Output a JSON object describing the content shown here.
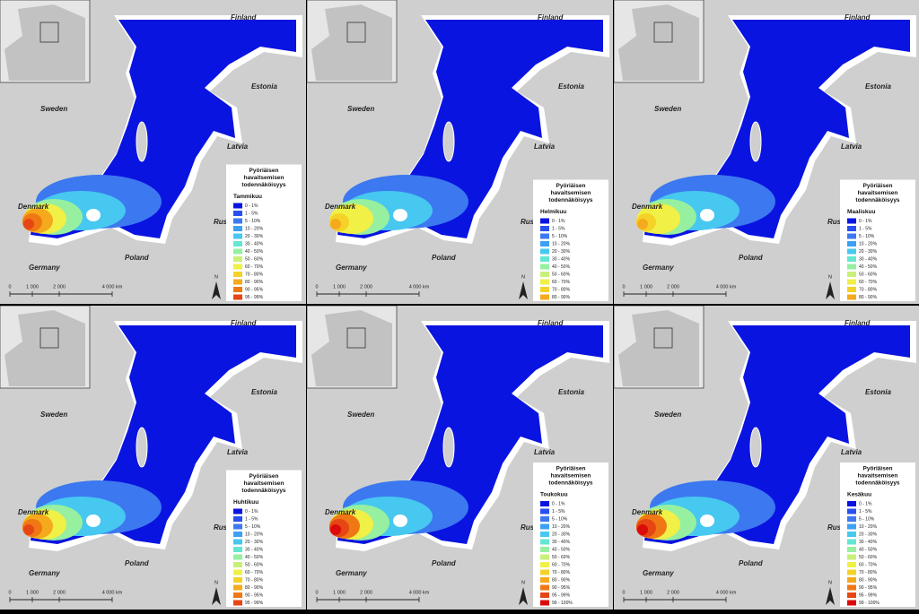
{
  "panels": [
    {
      "month": "Tammikuu",
      "legend_title": [
        "Pyöriäisen",
        "havaitsemisen",
        "todennäköisyys"
      ],
      "legend": [
        {
          "label": "0 - 1%",
          "color": "#0a14e0"
        },
        {
          "label": "1 - 5%",
          "color": "#2850f0"
        },
        {
          "label": "5 - 10%",
          "color": "#3c78f0"
        },
        {
          "label": "10 - 20%",
          "color": "#3ca0f5"
        },
        {
          "label": "20 - 30%",
          "color": "#46c8f0"
        },
        {
          "label": "30 - 40%",
          "color": "#64e6d2"
        },
        {
          "label": "40 - 50%",
          "color": "#96f0a0"
        },
        {
          "label": "50 - 60%",
          "color": "#c8f078"
        },
        {
          "label": "60 - 70%",
          "color": "#f0f046"
        },
        {
          "label": "70 - 80%",
          "color": "#f5d228"
        },
        {
          "label": "80 - 90%",
          "color": "#f5aa1e"
        },
        {
          "label": "90 - 95%",
          "color": "#f07814"
        },
        {
          "label": "95 - 99%",
          "color": "#e64614"
        }
      ],
      "places": [
        "Finland",
        "Estonia",
        "Sweden",
        "Latvia",
        "Russia",
        "Denmark",
        "Germany",
        "Poland"
      ],
      "scale": [
        "0",
        "1 000",
        "2 000",
        "4 000 km"
      ],
      "north": "N"
    },
    {
      "month": "Helmikuu",
      "legend_title": [
        "Pyöriäisen",
        "havaitsemisen",
        "todennäköisyys"
      ],
      "legend": [
        {
          "label": "0 - 1%",
          "color": "#0a14e0"
        },
        {
          "label": "1 - 5%",
          "color": "#2850f0"
        },
        {
          "label": "5 - 10%",
          "color": "#3c78f0"
        },
        {
          "label": "10 - 20%",
          "color": "#3ca0f5"
        },
        {
          "label": "20 - 30%",
          "color": "#46c8f0"
        },
        {
          "label": "30 - 40%",
          "color": "#64e6d2"
        },
        {
          "label": "40 - 50%",
          "color": "#96f0a0"
        },
        {
          "label": "50 - 60%",
          "color": "#c8f078"
        },
        {
          "label": "60 - 70%",
          "color": "#f0f046"
        },
        {
          "label": "70 - 80%",
          "color": "#f5d228"
        },
        {
          "label": "80 - 90%",
          "color": "#f5aa1e"
        }
      ],
      "places": [
        "Finland",
        "Estonia",
        "Sweden",
        "Latvia",
        "Russia",
        "Denmark",
        "Germany",
        "Poland"
      ],
      "scale": [
        "0",
        "1 000",
        "2 000",
        "4 000 km"
      ],
      "north": "N"
    },
    {
      "month": "Maaliskuu",
      "legend_title": [
        "Pyöriäisen",
        "havaitsemisen",
        "todennäköisyys"
      ],
      "legend": [
        {
          "label": "0 - 1%",
          "color": "#0a14e0"
        },
        {
          "label": "1 - 5%",
          "color": "#2850f0"
        },
        {
          "label": "5 - 10%",
          "color": "#3c78f0"
        },
        {
          "label": "10 - 20%",
          "color": "#3ca0f5"
        },
        {
          "label": "20 - 30%",
          "color": "#46c8f0"
        },
        {
          "label": "30 - 40%",
          "color": "#64e6d2"
        },
        {
          "label": "40 - 50%",
          "color": "#96f0a0"
        },
        {
          "label": "50 - 60%",
          "color": "#c8f078"
        },
        {
          "label": "60 - 70%",
          "color": "#f0f046"
        },
        {
          "label": "70 - 80%",
          "color": "#f5d228"
        },
        {
          "label": "80 - 90%",
          "color": "#f5aa1e"
        }
      ],
      "places": [
        "Finland",
        "Estonia",
        "Sweden",
        "Latvia",
        "Russia",
        "Denmark",
        "Germany",
        "Poland"
      ],
      "scale": [
        "0",
        "1 000",
        "2 000",
        "4 000 km"
      ],
      "north": "N"
    },
    {
      "month": "Huhtikuu",
      "legend_title": [
        "Pyöriäisen",
        "havaitsemisen",
        "todennäköisyys"
      ],
      "legend": [
        {
          "label": "0 - 1%",
          "color": "#0a14e0"
        },
        {
          "label": "1 - 5%",
          "color": "#2850f0"
        },
        {
          "label": "5 - 10%",
          "color": "#3c78f0"
        },
        {
          "label": "10 - 20%",
          "color": "#3ca0f5"
        },
        {
          "label": "20 - 30%",
          "color": "#46c8f0"
        },
        {
          "label": "30 - 40%",
          "color": "#64e6d2"
        },
        {
          "label": "40 - 50%",
          "color": "#96f0a0"
        },
        {
          "label": "50 - 60%",
          "color": "#c8f078"
        },
        {
          "label": "60 - 70%",
          "color": "#f0f046"
        },
        {
          "label": "70 - 80%",
          "color": "#f5d228"
        },
        {
          "label": "80 - 90%",
          "color": "#f5aa1e"
        },
        {
          "label": "90 - 95%",
          "color": "#f07814"
        },
        {
          "label": "95 - 99%",
          "color": "#e64614"
        }
      ],
      "places": [
        "Finland",
        "Estonia",
        "Sweden",
        "Latvia",
        "Russia",
        "Denmark",
        "Germany",
        "Poland"
      ],
      "scale": [
        "0",
        "1 000",
        "2 000",
        "4 000 km"
      ],
      "north": "N"
    },
    {
      "month": "Toukokuu",
      "legend_title": [
        "Pyöriäisen",
        "havaitsemisen",
        "todennäköisyys"
      ],
      "legend": [
        {
          "label": "0 - 1%",
          "color": "#0a14e0"
        },
        {
          "label": "1 - 5%",
          "color": "#2850f0"
        },
        {
          "label": "5 - 10%",
          "color": "#3c78f0"
        },
        {
          "label": "10 - 20%",
          "color": "#3ca0f5"
        },
        {
          "label": "20 - 30%",
          "color": "#46c8f0"
        },
        {
          "label": "30 - 40%",
          "color": "#64e6d2"
        },
        {
          "label": "40 - 50%",
          "color": "#96f0a0"
        },
        {
          "label": "50 - 60%",
          "color": "#c8f078"
        },
        {
          "label": "60 - 70%",
          "color": "#f0f046"
        },
        {
          "label": "70 - 80%",
          "color": "#f5d228"
        },
        {
          "label": "80 - 90%",
          "color": "#f5aa1e"
        },
        {
          "label": "90 - 95%",
          "color": "#f07814"
        },
        {
          "label": "95 - 99%",
          "color": "#e64614"
        },
        {
          "label": "99 - 100%",
          "color": "#dc0a0a"
        }
      ],
      "places": [
        "Finland",
        "Estonia",
        "Sweden",
        "Latvia",
        "Russia",
        "Denmark",
        "Germany",
        "Poland"
      ],
      "scale": [
        "0",
        "1 000",
        "2 000",
        "4 000 km"
      ],
      "north": "N"
    },
    {
      "month": "Kesäkuu",
      "legend_title": [
        "Pyöriäisen",
        "havaitsemisen",
        "todennäköisyys"
      ],
      "legend": [
        {
          "label": "0 - 1%",
          "color": "#0a14e0"
        },
        {
          "label": "1 - 5%",
          "color": "#2850f0"
        },
        {
          "label": "5 - 10%",
          "color": "#3c78f0"
        },
        {
          "label": "10 - 20%",
          "color": "#3ca0f5"
        },
        {
          "label": "20 - 30%",
          "color": "#46c8f0"
        },
        {
          "label": "30 - 40%",
          "color": "#64e6d2"
        },
        {
          "label": "40 - 50%",
          "color": "#96f0a0"
        },
        {
          "label": "50 - 60%",
          "color": "#c8f078"
        },
        {
          "label": "60 - 70%",
          "color": "#f0f046"
        },
        {
          "label": "70 - 80%",
          "color": "#f5d228"
        },
        {
          "label": "80 - 90%",
          "color": "#f5aa1e"
        },
        {
          "label": "90 - 95%",
          "color": "#f07814"
        },
        {
          "label": "95 - 99%",
          "color": "#e64614"
        },
        {
          "label": "99 - 100%",
          "color": "#dc0a0a"
        }
      ],
      "places": [
        "Finland",
        "Estonia",
        "Sweden",
        "Latvia",
        "Russia",
        "Denmark",
        "Germany",
        "Poland"
      ],
      "scale": [
        "0",
        "1 000",
        "2 000",
        "4 000 km"
      ],
      "north": "N"
    }
  ]
}
